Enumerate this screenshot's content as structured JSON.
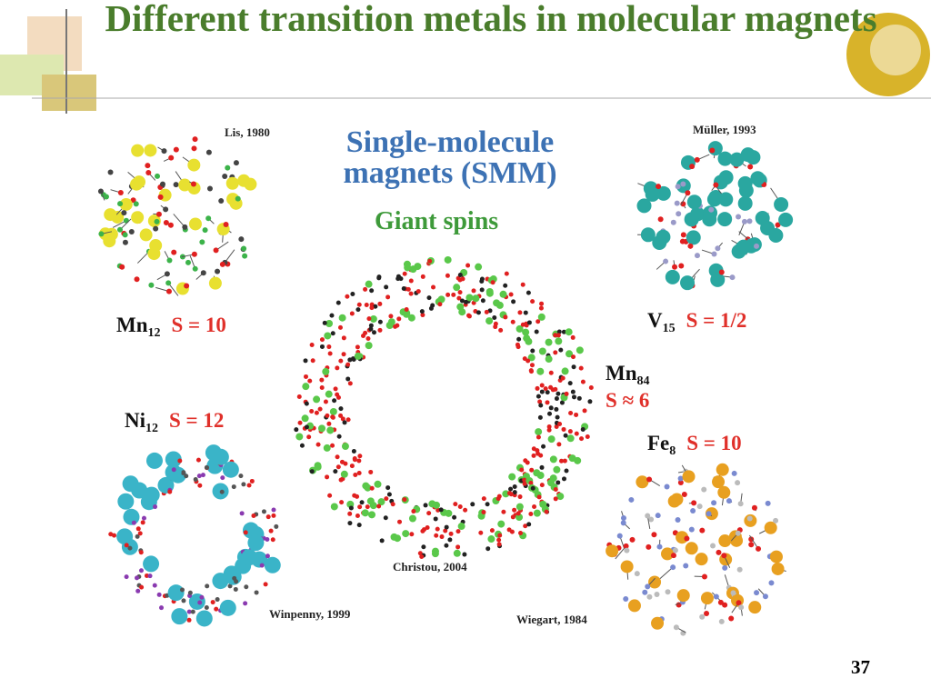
{
  "title": "Different transition metals in molecular magnets",
  "heading": [
    "Single-molecule",
    "magnets (SMM)"
  ],
  "subheading": "Giant spins",
  "molecules": [
    {
      "element": "Mn",
      "subscript": "12",
      "spin": "S = 10",
      "citation": "Lis, 1980"
    },
    {
      "element": "V",
      "subscript": "15",
      "spin": "S = 1/2",
      "citation": "Müller, 1993"
    },
    {
      "element": "Mn",
      "subscript": "84",
      "spin": "S ≈ 6",
      "citation": "Christou, 2004"
    },
    {
      "element": "Ni",
      "subscript": "12",
      "spin": "S = 12",
      "citation": "Winpenny, 1999"
    },
    {
      "element": "Fe",
      "subscript": "8",
      "spin": "S = 10",
      "citation": "Wiegart, 1984"
    }
  ],
  "page_number": "37"
}
